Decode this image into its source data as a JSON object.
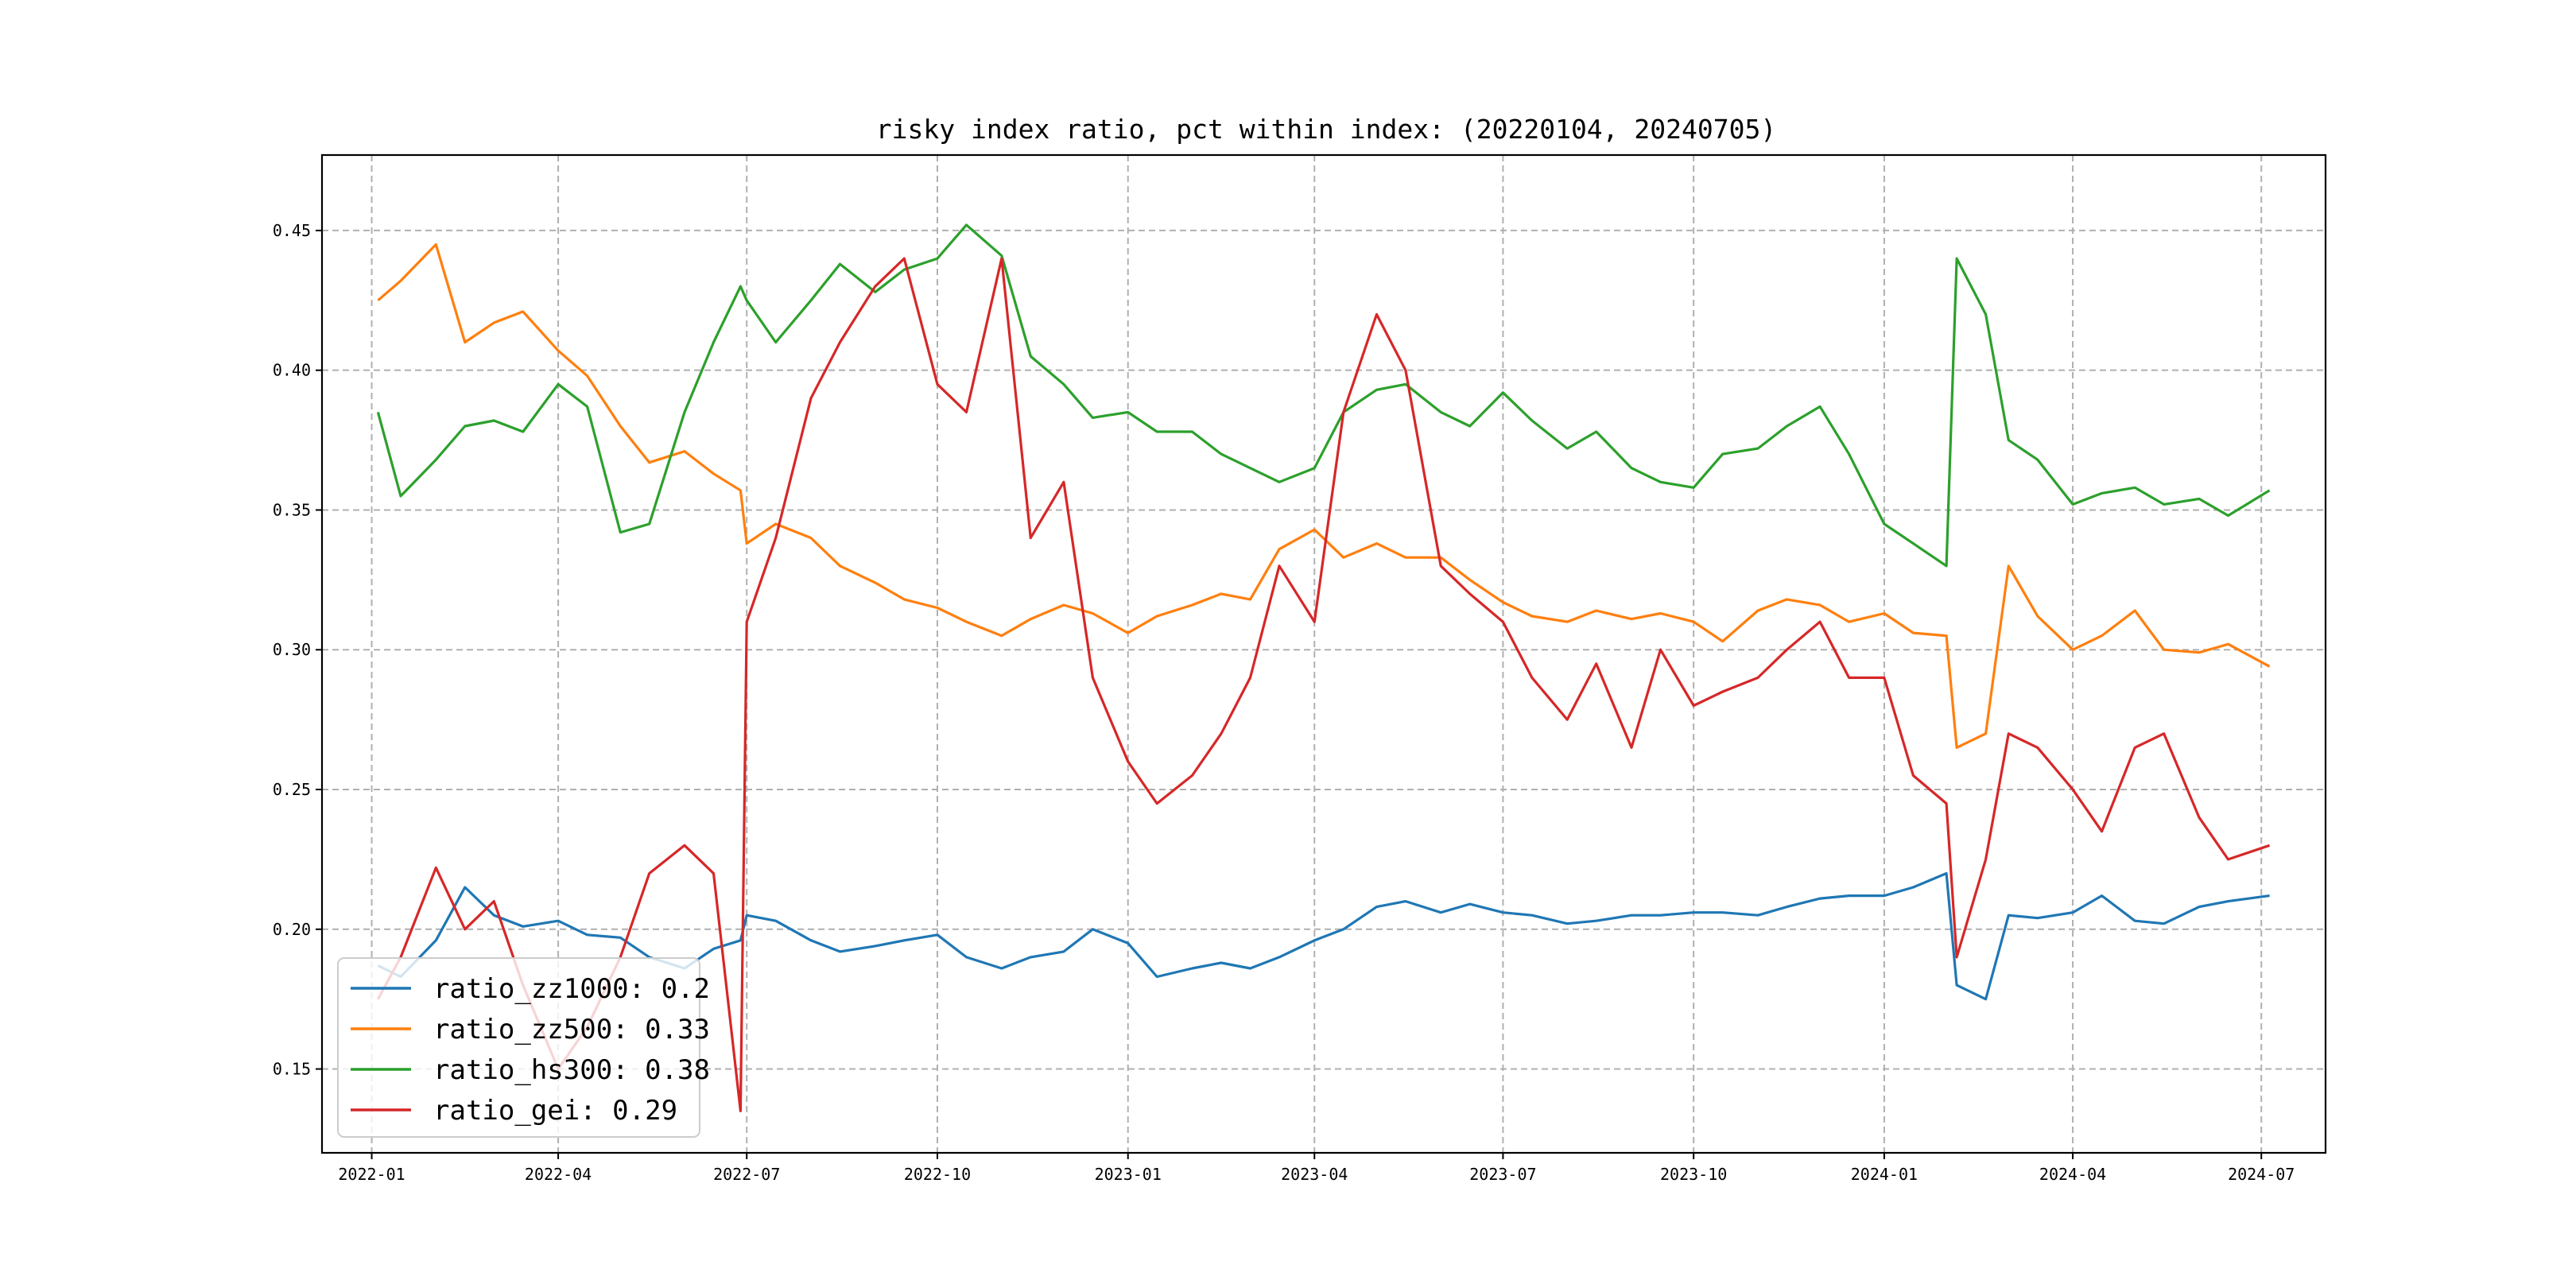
{
  "chart_data": {
    "type": "line",
    "title": "risky index ratio, pct within index: (20220104, 20240705)",
    "xlabel": "",
    "ylabel": "",
    "x_ticks": [
      "2022-01",
      "2022-04",
      "2022-07",
      "2022-10",
      "2023-01",
      "2023-04",
      "2023-07",
      "2023-10",
      "2024-01",
      "2024-04",
      "2024-07"
    ],
    "y_ticks": [
      "0.15",
      "0.20",
      "0.25",
      "0.30",
      "0.35",
      "0.40",
      "0.45"
    ],
    "ylim": [
      0.12,
      0.477
    ],
    "grid": true,
    "legend_position": "lower-left",
    "x": [
      "2022-01-04",
      "2022-01-15",
      "2022-02-01",
      "2022-02-15",
      "2022-03-01",
      "2022-03-15",
      "2022-04-01",
      "2022-04-15",
      "2022-05-01",
      "2022-05-15",
      "2022-06-01",
      "2022-06-15",
      "2022-06-28",
      "2022-07-01",
      "2022-07-15",
      "2022-08-01",
      "2022-08-15",
      "2022-09-01",
      "2022-09-15",
      "2022-10-01",
      "2022-10-15",
      "2022-11-01",
      "2022-11-15",
      "2022-12-01",
      "2022-12-15",
      "2023-01-01",
      "2023-01-15",
      "2023-02-01",
      "2023-02-15",
      "2023-03-01",
      "2023-03-15",
      "2023-04-01",
      "2023-04-15",
      "2023-05-01",
      "2023-05-15",
      "2023-06-01",
      "2023-06-15",
      "2023-07-01",
      "2023-07-15",
      "2023-08-01",
      "2023-08-15",
      "2023-09-01",
      "2023-09-15",
      "2023-10-01",
      "2023-10-15",
      "2023-11-01",
      "2023-11-15",
      "2023-12-01",
      "2023-12-15",
      "2024-01-01",
      "2024-01-15",
      "2024-01-31",
      "2024-02-05",
      "2024-02-19",
      "2024-03-01",
      "2024-03-15",
      "2024-04-01",
      "2024-04-15",
      "2024-05-01",
      "2024-05-15",
      "2024-06-01",
      "2024-06-15",
      "2024-07-05"
    ],
    "series": [
      {
        "name": "ratio_zz1000",
        "legend": "ratio_zz1000: 0.2",
        "color": "#1f77b4",
        "values": [
          0.187,
          0.183,
          0.196,
          0.215,
          0.205,
          0.201,
          0.203,
          0.198,
          0.197,
          0.19,
          0.186,
          0.193,
          0.196,
          0.205,
          0.203,
          0.196,
          0.192,
          0.194,
          0.196,
          0.198,
          0.19,
          0.186,
          0.19,
          0.192,
          0.2,
          0.195,
          0.183,
          0.186,
          0.188,
          0.186,
          0.19,
          0.196,
          0.2,
          0.208,
          0.21,
          0.206,
          0.209,
          0.206,
          0.205,
          0.202,
          0.203,
          0.205,
          0.205,
          0.206,
          0.206,
          0.205,
          0.208,
          0.211,
          0.212,
          0.212,
          0.215,
          0.22,
          0.18,
          0.175,
          0.205,
          0.204,
          0.206,
          0.212,
          0.203,
          0.202,
          0.208,
          0.21,
          0.212
        ]
      },
      {
        "name": "ratio_zz500",
        "legend": "ratio_zz500: 0.33",
        "color": "#ff7f0e",
        "values": [
          0.425,
          0.432,
          0.445,
          0.41,
          0.417,
          0.421,
          0.407,
          0.398,
          0.38,
          0.367,
          0.371,
          0.363,
          0.357,
          0.338,
          0.345,
          0.34,
          0.33,
          0.324,
          0.318,
          0.315,
          0.31,
          0.305,
          0.311,
          0.316,
          0.313,
          0.306,
          0.312,
          0.316,
          0.32,
          0.318,
          0.336,
          0.343,
          0.333,
          0.338,
          0.333,
          0.333,
          0.325,
          0.317,
          0.312,
          0.31,
          0.314,
          0.311,
          0.313,
          0.31,
          0.303,
          0.314,
          0.318,
          0.316,
          0.31,
          0.313,
          0.306,
          0.305,
          0.265,
          0.27,
          0.33,
          0.312,
          0.3,
          0.305,
          0.314,
          0.3,
          0.299,
          0.302,
          0.294
        ]
      },
      {
        "name": "ratio_hs300",
        "legend": "ratio_hs300: 0.38",
        "color": "#2ca02c",
        "values": [
          0.385,
          0.355,
          0.368,
          0.38,
          0.382,
          0.378,
          0.395,
          0.387,
          0.342,
          0.345,
          0.385,
          0.41,
          0.43,
          0.425,
          0.41,
          0.425,
          0.438,
          0.428,
          0.436,
          0.44,
          0.452,
          0.441,
          0.405,
          0.395,
          0.383,
          0.385,
          0.378,
          0.378,
          0.37,
          0.365,
          0.36,
          0.365,
          0.385,
          0.393,
          0.395,
          0.385,
          0.38,
          0.392,
          0.382,
          0.372,
          0.378,
          0.365,
          0.36,
          0.358,
          0.37,
          0.372,
          0.38,
          0.387,
          0.37,
          0.345,
          0.338,
          0.33,
          0.44,
          0.42,
          0.375,
          0.368,
          0.352,
          0.356,
          0.358,
          0.352,
          0.354,
          0.348,
          0.357
        ]
      },
      {
        "name": "ratio_gei",
        "legend": "ratio_gei: 0.29",
        "color": "#d62728",
        "values": [
          0.175,
          0.19,
          0.222,
          0.2,
          0.21,
          0.18,
          0.15,
          0.165,
          0.19,
          0.22,
          0.23,
          0.22,
          0.135,
          0.31,
          0.34,
          0.39,
          0.41,
          0.43,
          0.44,
          0.395,
          0.385,
          0.44,
          0.34,
          0.36,
          0.29,
          0.26,
          0.245,
          0.255,
          0.27,
          0.29,
          0.33,
          0.31,
          0.385,
          0.42,
          0.4,
          0.33,
          0.32,
          0.31,
          0.29,
          0.275,
          0.295,
          0.265,
          0.3,
          0.28,
          0.285,
          0.29,
          0.3,
          0.31,
          0.29,
          0.29,
          0.255,
          0.245,
          0.19,
          0.225,
          0.27,
          0.265,
          0.25,
          0.235,
          0.265,
          0.27,
          0.24,
          0.225,
          0.23
        ]
      }
    ]
  }
}
